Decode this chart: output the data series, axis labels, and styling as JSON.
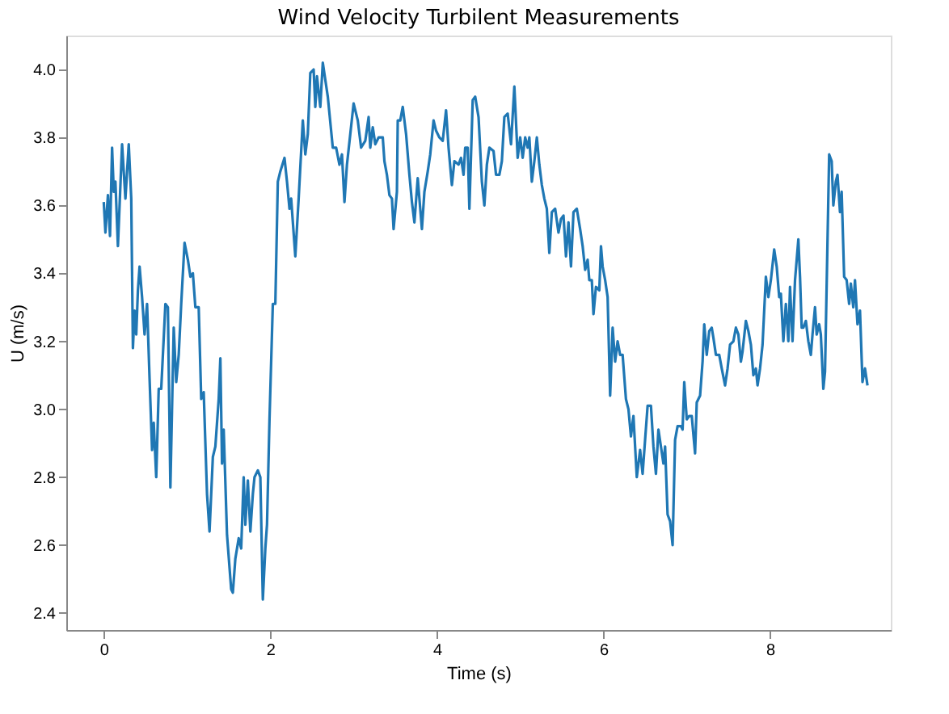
{
  "chart_data": {
    "type": "line",
    "title": "Wind Velocity Turbilent Measurements",
    "xlabel": "Time (s)",
    "ylabel": "U (m/s)",
    "x": [
      0,
      0.02,
      0.05,
      0.075,
      0.1,
      0.12,
      0.14,
      0.17,
      0.22,
      0.26,
      0.3,
      0.33,
      0.35,
      0.37,
      0.39,
      0.41,
      0.43,
      0.46,
      0.49,
      0.52,
      0.55,
      0.58,
      0.6,
      0.63,
      0.66,
      0.69,
      0.74,
      0.77,
      0.8,
      0.84,
      0.87,
      0.9,
      0.93,
      0.97,
      1.01,
      1.04,
      1.07,
      1.1,
      1.14,
      1.17,
      1.2,
      1.24,
      1.27,
      1.31,
      1.34,
      1.38,
      1.4,
      1.42,
      1.44,
      1.48,
      1.53,
      1.55,
      1.58,
      1.62,
      1.65,
      1.68,
      1.7,
      1.73,
      1.76,
      1.79,
      1.81,
      1.85,
      1.88,
      1.91,
      1.94,
      1.96,
      1.99,
      2.03,
      2.06,
      2.09,
      2.12,
      2.17,
      2.2,
      2.23,
      2.25,
      2.3,
      2.34,
      2.39,
      2.42,
      2.45,
      2.48,
      2.52,
      2.54,
      2.56,
      2.6,
      2.63,
      2.66,
      2.69,
      2.75,
      2.79,
      2.83,
      2.86,
      2.89,
      2.92,
      2.96,
      3.0,
      3.05,
      3.09,
      3.14,
      3.18,
      3.2,
      3.23,
      3.26,
      3.3,
      3.35,
      3.37,
      3.4,
      3.43,
      3.46,
      3.48,
      3.52,
      3.53,
      3.56,
      3.59,
      3.63,
      3.67,
      3.7,
      3.73,
      3.77,
      3.82,
      3.85,
      3.89,
      3.92,
      3.96,
      3.99,
      4.03,
      4.07,
      4.11,
      4.14,
      4.18,
      4.21,
      4.26,
      4.29,
      4.32,
      4.34,
      4.37,
      4.39,
      4.43,
      4.46,
      4.5,
      4.54,
      4.57,
      4.6,
      4.63,
      4.68,
      4.71,
      4.75,
      4.78,
      4.81,
      4.85,
      4.89,
      4.93,
      4.97,
      5.0,
      5.03,
      5.06,
      5.09,
      5.11,
      5.14,
      5.17,
      5.2,
      5.23,
      5.26,
      5.29,
      5.32,
      5.35,
      5.38,
      5.42,
      5.46,
      5.49,
      5.52,
      5.55,
      5.58,
      5.61,
      5.64,
      5.68,
      5.72,
      5.75,
      5.78,
      5.81,
      5.83,
      5.86,
      5.88,
      5.91,
      5.95,
      5.97,
      5.99,
      6.02,
      6.05,
      6.08,
      6.11,
      6.14,
      6.17,
      6.2,
      6.23,
      6.27,
      6.3,
      6.33,
      6.36,
      6.4,
      6.44,
      6.47,
      6.5,
      6.53,
      6.57,
      6.6,
      6.63,
      6.66,
      6.69,
      6.72,
      6.74,
      6.77,
      6.8,
      6.83,
      6.86,
      6.89,
      6.93,
      6.95,
      6.97,
      7.0,
      7.03,
      7.06,
      7.1,
      7.12,
      7.16,
      7.19,
      7.21,
      7.24,
      7.27,
      7.3,
      7.32,
      7.35,
      7.39,
      7.42,
      7.46,
      7.49,
      7.52,
      7.56,
      7.59,
      7.62,
      7.65,
      7.67,
      7.71,
      7.74,
      7.77,
      7.8,
      7.83,
      7.85,
      7.88,
      7.91,
      7.95,
      7.98,
      8.01,
      8.05,
      8.08,
      8.11,
      8.13,
      8.16,
      8.19,
      8.22,
      8.24,
      8.27,
      8.3,
      8.34,
      8.36,
      8.38,
      8.4,
      8.43,
      8.46,
      8.49,
      8.51,
      8.54,
      8.56,
      8.59,
      8.61,
      8.64,
      8.66,
      8.71,
      8.74,
      8.76,
      8.79,
      8.81,
      8.84,
      8.86,
      8.89,
      8.92,
      8.95,
      8.97,
      9.0,
      9.02,
      9.05,
      9.08,
      9.11,
      9.14,
      9.17
    ],
    "series": [
      {
        "color": "#1f77b4",
        "values": [
          3.61,
          3.52,
          3.63,
          3.51,
          3.77,
          3.64,
          3.67,
          3.48,
          3.78,
          3.62,
          3.78,
          3.62,
          3.18,
          3.29,
          3.22,
          3.35,
          3.42,
          3.33,
          3.22,
          3.31,
          3.09,
          2.88,
          2.96,
          2.8,
          3.06,
          3.06,
          3.31,
          3.3,
          2.77,
          3.24,
          3.08,
          3.16,
          3.31,
          3.49,
          3.44,
          3.39,
          3.4,
          3.3,
          3.3,
          3.03,
          3.05,
          2.75,
          2.64,
          2.86,
          2.89,
          3.03,
          3.15,
          2.84,
          2.94,
          2.63,
          2.47,
          2.46,
          2.56,
          2.62,
          2.59,
          2.8,
          2.66,
          2.79,
          2.64,
          2.75,
          2.8,
          2.82,
          2.8,
          2.44,
          2.59,
          2.66,
          2.97,
          3.31,
          3.31,
          3.67,
          3.7,
          3.74,
          3.67,
          3.59,
          3.62,
          3.45,
          3.62,
          3.85,
          3.75,
          3.81,
          3.99,
          4.0,
          3.89,
          3.98,
          3.89,
          4.02,
          3.97,
          3.92,
          3.77,
          3.77,
          3.72,
          3.75,
          3.61,
          3.72,
          3.81,
          3.9,
          3.85,
          3.77,
          3.79,
          3.86,
          3.77,
          3.83,
          3.78,
          3.8,
          3.8,
          3.73,
          3.69,
          3.63,
          3.62,
          3.53,
          3.64,
          3.85,
          3.85,
          3.89,
          3.81,
          3.69,
          3.61,
          3.55,
          3.68,
          3.53,
          3.64,
          3.7,
          3.75,
          3.85,
          3.82,
          3.8,
          3.79,
          3.88,
          3.77,
          3.66,
          3.73,
          3.72,
          3.74,
          3.69,
          3.77,
          3.77,
          3.59,
          3.91,
          3.92,
          3.86,
          3.67,
          3.6,
          3.72,
          3.77,
          3.76,
          3.69,
          3.69,
          3.73,
          3.86,
          3.87,
          3.78,
          3.95,
          3.74,
          3.8,
          3.74,
          3.8,
          3.77,
          3.8,
          3.67,
          3.73,
          3.8,
          3.72,
          3.66,
          3.62,
          3.59,
          3.46,
          3.58,
          3.59,
          3.52,
          3.56,
          3.57,
          3.45,
          3.55,
          3.42,
          3.58,
          3.59,
          3.53,
          3.48,
          3.41,
          3.44,
          3.38,
          3.38,
          3.28,
          3.36,
          3.35,
          3.48,
          3.42,
          3.38,
          3.33,
          3.04,
          3.24,
          3.14,
          3.2,
          3.16,
          3.16,
          3.03,
          3.0,
          2.92,
          2.98,
          2.8,
          2.88,
          2.81,
          2.91,
          3.01,
          3.01,
          2.89,
          2.81,
          2.94,
          2.89,
          2.84,
          2.89,
          2.69,
          2.67,
          2.6,
          2.91,
          2.95,
          2.95,
          2.94,
          3.08,
          2.97,
          2.98,
          2.98,
          2.87,
          3.02,
          3.04,
          3.14,
          3.25,
          3.16,
          3.23,
          3.24,
          3.21,
          3.16,
          3.16,
          3.12,
          3.07,
          3.12,
          3.19,
          3.2,
          3.24,
          3.22,
          3.14,
          3.17,
          3.26,
          3.23,
          3.19,
          3.1,
          3.12,
          3.07,
          3.12,
          3.19,
          3.39,
          3.33,
          3.38,
          3.47,
          3.42,
          3.33,
          3.34,
          3.2,
          3.31,
          3.2,
          3.36,
          3.2,
          3.38,
          3.5,
          3.39,
          3.24,
          3.24,
          3.26,
          3.2,
          3.16,
          3.22,
          3.3,
          3.22,
          3.25,
          3.22,
          3.06,
          3.11,
          3.75,
          3.73,
          3.6,
          3.67,
          3.69,
          3.58,
          3.64,
          3.39,
          3.38,
          3.31,
          3.37,
          3.3,
          3.38,
          3.25,
          3.29,
          3.08,
          3.12,
          3.07
        ]
      }
    ],
    "xlim": [
      -0.45,
      9.45
    ],
    "ylim": [
      2.35,
      4.1
    ],
    "xticks": [
      0,
      2,
      4,
      6,
      8
    ],
    "yticks": [
      2.4,
      2.6,
      2.8,
      {
        "value": 3,
        "label": "3.0"
      },
      3.2,
      3.4,
      3.6,
      3.8,
      {
        "value": 4,
        "label": "4.0"
      }
    ],
    "grid": false
  }
}
